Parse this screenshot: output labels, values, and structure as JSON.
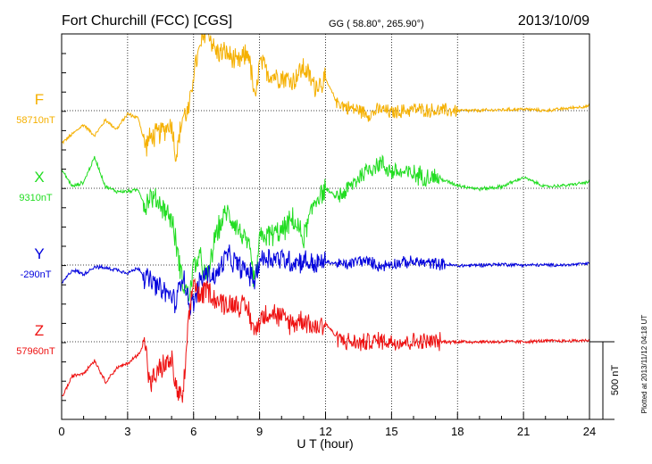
{
  "chart_data": {
    "type": "line",
    "title": "Fort Churchill (FCC)  [CGS]",
    "coords": "GG ( 58.80°, 265.90°)",
    "date": "2013/10/09",
    "xlabel": "U T (hour)",
    "xlim": [
      0,
      24
    ],
    "xticks": [
      0,
      3,
      6,
      9,
      12,
      15,
      18,
      21,
      24
    ],
    "scale_label": "500 nT",
    "scale_nT": 500,
    "footer": "Plotted at 2013/11/12 04:18 UT",
    "grid": true,
    "series": [
      {
        "name": "F",
        "baseline_label": "58710nT",
        "baseline_nT": 58710,
        "color": "#f5b000",
        "amp": 0,
        "x": [
          0,
          0.5,
          1,
          1.5,
          2,
          2.5,
          3,
          3.5,
          3.8,
          4,
          4.5,
          5,
          5.2,
          5.5,
          5.8,
          6,
          6.3,
          6.6,
          7,
          7.5,
          8,
          8.5,
          8.8,
          9,
          9.5,
          10,
          10.5,
          11,
          11.5,
          12,
          12.5,
          13,
          13.5,
          14,
          14.5,
          15,
          16,
          17,
          18,
          19,
          20,
          21,
          22,
          23,
          24
        ],
        "values": [
          -210,
          -150,
          -90,
          -160,
          -60,
          -120,
          -20,
          -50,
          -230,
          -180,
          -140,
          -80,
          -300,
          -40,
          0,
          250,
          400,
          540,
          380,
          370,
          300,
          380,
          50,
          310,
          230,
          220,
          190,
          280,
          160,
          200,
          60,
          20,
          5,
          -25,
          10,
          -15,
          10,
          0,
          0,
          0,
          5,
          10,
          0,
          15,
          30
        ],
        "noise": [
          [
            12.5,
            18,
            55
          ],
          [
            20.5,
            24,
            12
          ]
        ]
      },
      {
        "name": "X",
        "baseline_label": "9310nT",
        "baseline_nT": 9310,
        "color": "#22dd22",
        "amp": 0,
        "x": [
          0,
          0.5,
          1,
          1.5,
          2,
          2.5,
          3,
          3.5,
          3.8,
          4,
          4.5,
          5,
          5.2,
          5.5,
          5.8,
          6,
          6.3,
          6.6,
          7,
          7.5,
          8,
          8.5,
          8.8,
          9,
          9.5,
          10,
          10.5,
          11,
          11.5,
          12,
          12.5,
          13,
          13.5,
          14,
          14.5,
          15,
          16,
          17,
          18,
          19,
          20,
          21,
          22,
          23,
          24
        ],
        "values": [
          120,
          10,
          40,
          200,
          10,
          -20,
          -20,
          -10,
          -120,
          -50,
          -100,
          -200,
          -350,
          -600,
          -700,
          -500,
          -450,
          -600,
          -300,
          -150,
          -250,
          -380,
          -620,
          -320,
          -300,
          -280,
          -200,
          -320,
          -80,
          0,
          -60,
          -10,
          70,
          130,
          160,
          110,
          90,
          70,
          20,
          -5,
          10,
          70,
          10,
          20,
          40
        ],
        "noise": [
          [
            12.5,
            17.2,
            75
          ],
          [
            20.5,
            24,
            12
          ]
        ]
      },
      {
        "name": "Y",
        "baseline_label": "-290nT",
        "baseline_nT": -290,
        "color": "#0000dd",
        "amp": 0,
        "x": [
          0,
          0.5,
          1,
          1.5,
          2,
          2.5,
          3,
          3.5,
          3.8,
          4,
          4.5,
          5,
          5.2,
          5.5,
          5.8,
          6,
          6.3,
          6.6,
          7,
          7.5,
          8,
          8.5,
          8.8,
          9,
          9.5,
          10,
          10.5,
          11,
          11.5,
          12,
          12.5,
          13,
          13.5,
          14,
          14.5,
          15,
          16,
          17,
          18,
          19,
          20,
          21,
          22,
          23,
          24
        ],
        "values": [
          -120,
          -30,
          -60,
          -10,
          -20,
          -30,
          -50,
          -20,
          -80,
          -100,
          -160,
          -200,
          -250,
          -40,
          -250,
          -250,
          -100,
          -50,
          -80,
          60,
          0,
          -50,
          -100,
          40,
          50,
          40,
          20,
          30,
          0,
          20,
          10,
          0,
          30,
          20,
          -10,
          10,
          20,
          10,
          -5,
          0,
          5,
          0,
          0,
          0,
          10
        ],
        "noise": [
          [
            12.5,
            17.5,
            45
          ],
          [
            20.5,
            24,
            12
          ]
        ]
      },
      {
        "name": "Z",
        "baseline_label": "57960nT",
        "baseline_nT": 57960,
        "color": "#ee1111",
        "amp": 0,
        "x": [
          0,
          0.5,
          1,
          1.5,
          2,
          2.5,
          3,
          3.5,
          3.8,
          4,
          4.5,
          5,
          5.2,
          5.5,
          5.8,
          6,
          6.3,
          6.6,
          7,
          7.5,
          8,
          8.5,
          8.8,
          9,
          9.5,
          10,
          10.5,
          11,
          11.5,
          12,
          12.5,
          13,
          13.5,
          14,
          14.5,
          15,
          16,
          17,
          18,
          19,
          20,
          21,
          22,
          23,
          24
        ],
        "values": [
          -360,
          -220,
          -200,
          -120,
          -260,
          -170,
          -140,
          -80,
          10,
          -280,
          -170,
          -120,
          -300,
          -380,
          150,
          400,
          280,
          350,
          270,
          240,
          250,
          200,
          50,
          150,
          200,
          150,
          120,
          150,
          90,
          120,
          30,
          0,
          -10,
          0,
          10,
          0,
          0,
          0,
          0,
          0,
          0,
          0,
          5,
          5,
          10
        ],
        "noise": [
          [
            12.5,
            17.2,
            70
          ],
          [
            20.5,
            24,
            12
          ]
        ]
      }
    ]
  }
}
